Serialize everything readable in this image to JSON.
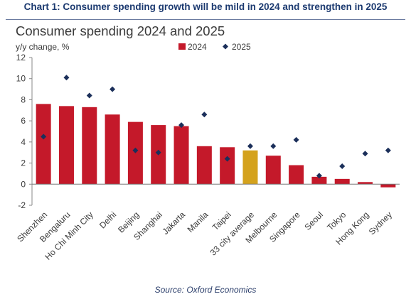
{
  "heading": "Chart 1: Consumer spending growth will be mild in 2024 and strengthen in 2025",
  "source": "Source: Oxford Economics",
  "colors": {
    "bar": "#c4192a",
    "highlight_bar": "#d4a21d",
    "marker": "#1b2f5a",
    "heading": "#1c3a70"
  },
  "chart_data": {
    "type": "bar",
    "title": "Consumer spending 2024 and 2025",
    "ylabel": "y/y change, %",
    "xlabel": "",
    "ylim": [
      -2,
      12
    ],
    "yticks": [
      -2,
      0,
      2,
      4,
      6,
      8,
      10,
      12
    ],
    "grid": false,
    "legend_position": "top-right",
    "categories": [
      "Shenzhen",
      "Bengaluru",
      "Ho Chi Minh City",
      "Delhi",
      "Beijing",
      "Shanghai",
      "Jakarta",
      "Manila",
      "Taipei",
      "33 city average",
      "Melbourne",
      "Singapore",
      "Seoul",
      "Tokyo",
      "Hong Kong",
      "Sydney"
    ],
    "highlight_category": "33 city average",
    "series": [
      {
        "name": "2024",
        "kind": "bar",
        "values": [
          7.6,
          7.4,
          7.3,
          6.6,
          5.9,
          5.6,
          5.5,
          3.6,
          3.5,
          3.2,
          2.7,
          1.8,
          0.7,
          0.5,
          0.2,
          -0.3
        ]
      },
      {
        "name": "2025",
        "kind": "marker",
        "values": [
          4.5,
          10.1,
          8.4,
          9.0,
          3.2,
          3.0,
          5.6,
          6.6,
          2.4,
          3.6,
          3.6,
          4.2,
          0.8,
          1.7,
          2.9,
          3.2
        ]
      }
    ]
  }
}
